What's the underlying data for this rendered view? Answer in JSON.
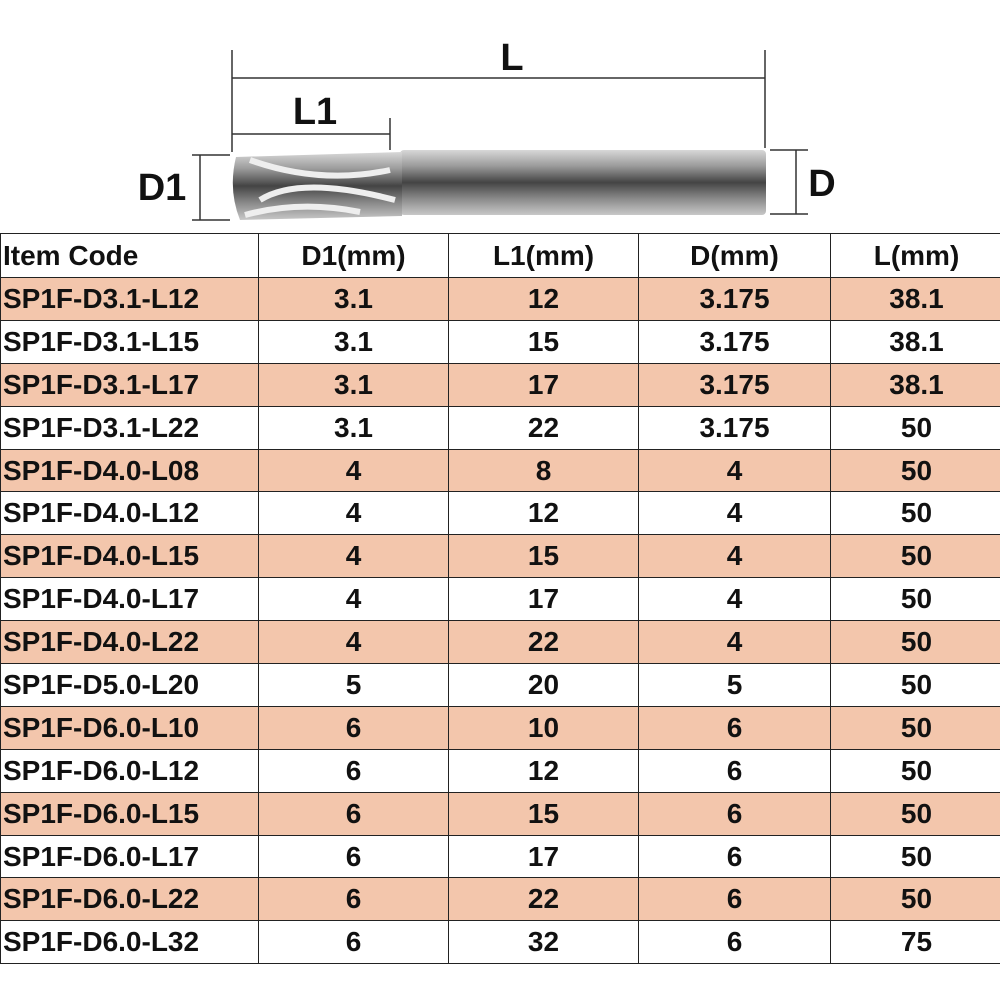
{
  "diagram": {
    "labels": {
      "L": "L",
      "L1": "L1",
      "D1": "D1",
      "D": "D"
    }
  },
  "table": {
    "header": [
      "Item Code",
      "D1(mm)",
      "L1(mm)",
      "D(mm)",
      "L(mm)"
    ],
    "rows": [
      [
        "SP1F-D3.1-L12",
        "3.1",
        "12",
        "3.175",
        "38.1"
      ],
      [
        "SP1F-D3.1-L15",
        "3.1",
        "15",
        "3.175",
        "38.1"
      ],
      [
        "SP1F-D3.1-L17",
        "3.1",
        "17",
        "3.175",
        "38.1"
      ],
      [
        "SP1F-D3.1-L22",
        "3.1",
        "22",
        "3.175",
        "50"
      ],
      [
        "SP1F-D4.0-L08",
        "4",
        "8",
        "4",
        "50"
      ],
      [
        "SP1F-D4.0-L12",
        "4",
        "12",
        "4",
        "50"
      ],
      [
        "SP1F-D4.0-L15",
        "4",
        "15",
        "4",
        "50"
      ],
      [
        "SP1F-D4.0-L17",
        "4",
        "17",
        "4",
        "50"
      ],
      [
        "SP1F-D4.0-L22",
        "4",
        "22",
        "4",
        "50"
      ],
      [
        "SP1F-D5.0-L20",
        "5",
        "20",
        "5",
        "50"
      ],
      [
        "SP1F-D6.0-L10",
        "6",
        "10",
        "6",
        "50"
      ],
      [
        "SP1F-D6.0-L12",
        "6",
        "12",
        "6",
        "50"
      ],
      [
        "SP1F-D6.0-L15",
        "6",
        "15",
        "6",
        "50"
      ],
      [
        "SP1F-D6.0-L17",
        "6",
        "17",
        "6",
        "50"
      ],
      [
        "SP1F-D6.0-L22",
        "6",
        "22",
        "6",
        "50"
      ],
      [
        "SP1F-D6.0-L32",
        "6",
        "32",
        "6",
        "75"
      ]
    ]
  }
}
